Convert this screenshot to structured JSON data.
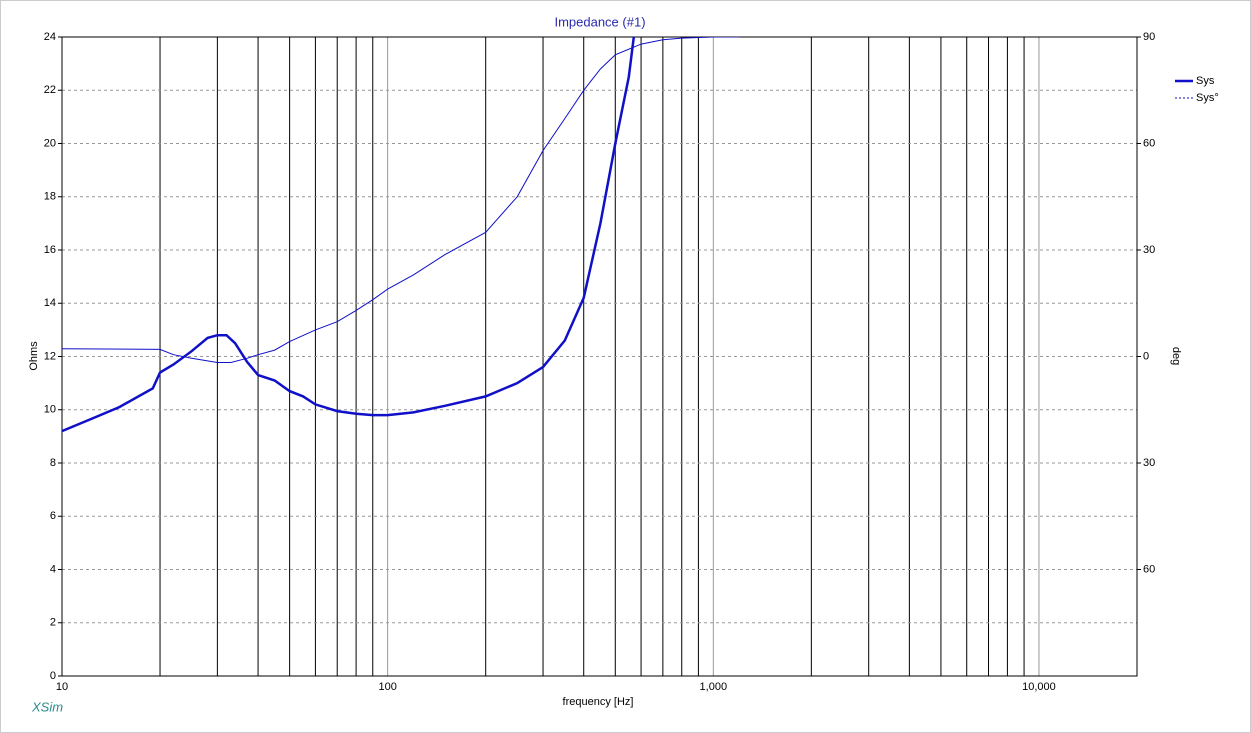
{
  "chart_data": {
    "type": "line",
    "title": "Impedance (#1)",
    "xlabel": "frequency [Hz]",
    "ylabel": "Ohms",
    "y2label": "deg",
    "footer": "XSim",
    "xscale": "log",
    "xlim": [
      10,
      20000
    ],
    "xticks": [
      10,
      100,
      {
        "value": 1000,
        "label": "1,000"
      },
      {
        "value": 10000,
        "label": "10,000"
      }
    ],
    "xgrid": [
      20,
      30,
      40,
      50,
      60,
      70,
      80,
      90,
      200,
      300,
      400,
      500,
      600,
      700,
      800,
      900,
      2000,
      3000,
      4000,
      5000,
      6000,
      7000,
      8000,
      9000
    ],
    "ylim": [
      0,
      24
    ],
    "yticks": [
      0,
      2,
      4,
      6,
      8,
      10,
      12,
      14,
      16,
      18,
      20,
      22,
      24
    ],
    "y2lim": [
      -90,
      90
    ],
    "y2ticks": [
      90,
      60,
      30,
      0,
      {
        "value": -30,
        "label": "30"
      },
      {
        "value": -60,
        "label": "60"
      }
    ],
    "grid": true,
    "legend": "right",
    "series": [
      {
        "name": "Sys",
        "color": "#1010c8",
        "x": [
          10,
          12,
          15,
          19,
          20,
          22,
          25,
          28,
          30,
          32,
          34,
          37,
          40,
          45,
          50,
          55,
          60,
          70,
          80,
          90,
          100,
          120,
          150,
          200,
          250,
          300,
          350,
          400,
          450,
          500,
          550,
          570
        ],
        "values": [
          9.2,
          9.6,
          10.1,
          10.8,
          11.4,
          11.7,
          12.2,
          12.7,
          12.8,
          12.8,
          12.5,
          11.8,
          11.3,
          11.1,
          10.7,
          10.5,
          10.2,
          9.95,
          9.85,
          9.8,
          9.8,
          9.9,
          10.15,
          10.5,
          11.0,
          11.6,
          12.6,
          14.2,
          17.0,
          20.0,
          22.5,
          24
        ]
      },
      {
        "name": "Sys°",
        "color": "#1010c8",
        "axis": "y2",
        "x": [
          10,
          20,
          22,
          25,
          30,
          33,
          37,
          40,
          45,
          50,
          60,
          70,
          80,
          90,
          100,
          120,
          150,
          200,
          250,
          300,
          350,
          400,
          450,
          500,
          600,
          700,
          800,
          1000,
          1200
        ],
        "values": [
          2.2,
          2,
          0.5,
          -0.5,
          -1.7,
          -1.7,
          -0.5,
          0.5,
          1.8,
          4.2,
          7.5,
          9.8,
          13,
          16,
          19,
          23,
          28.7,
          35,
          45,
          58,
          67,
          75,
          81,
          85,
          88,
          89.2,
          89.7,
          90,
          90
        ]
      }
    ]
  }
}
